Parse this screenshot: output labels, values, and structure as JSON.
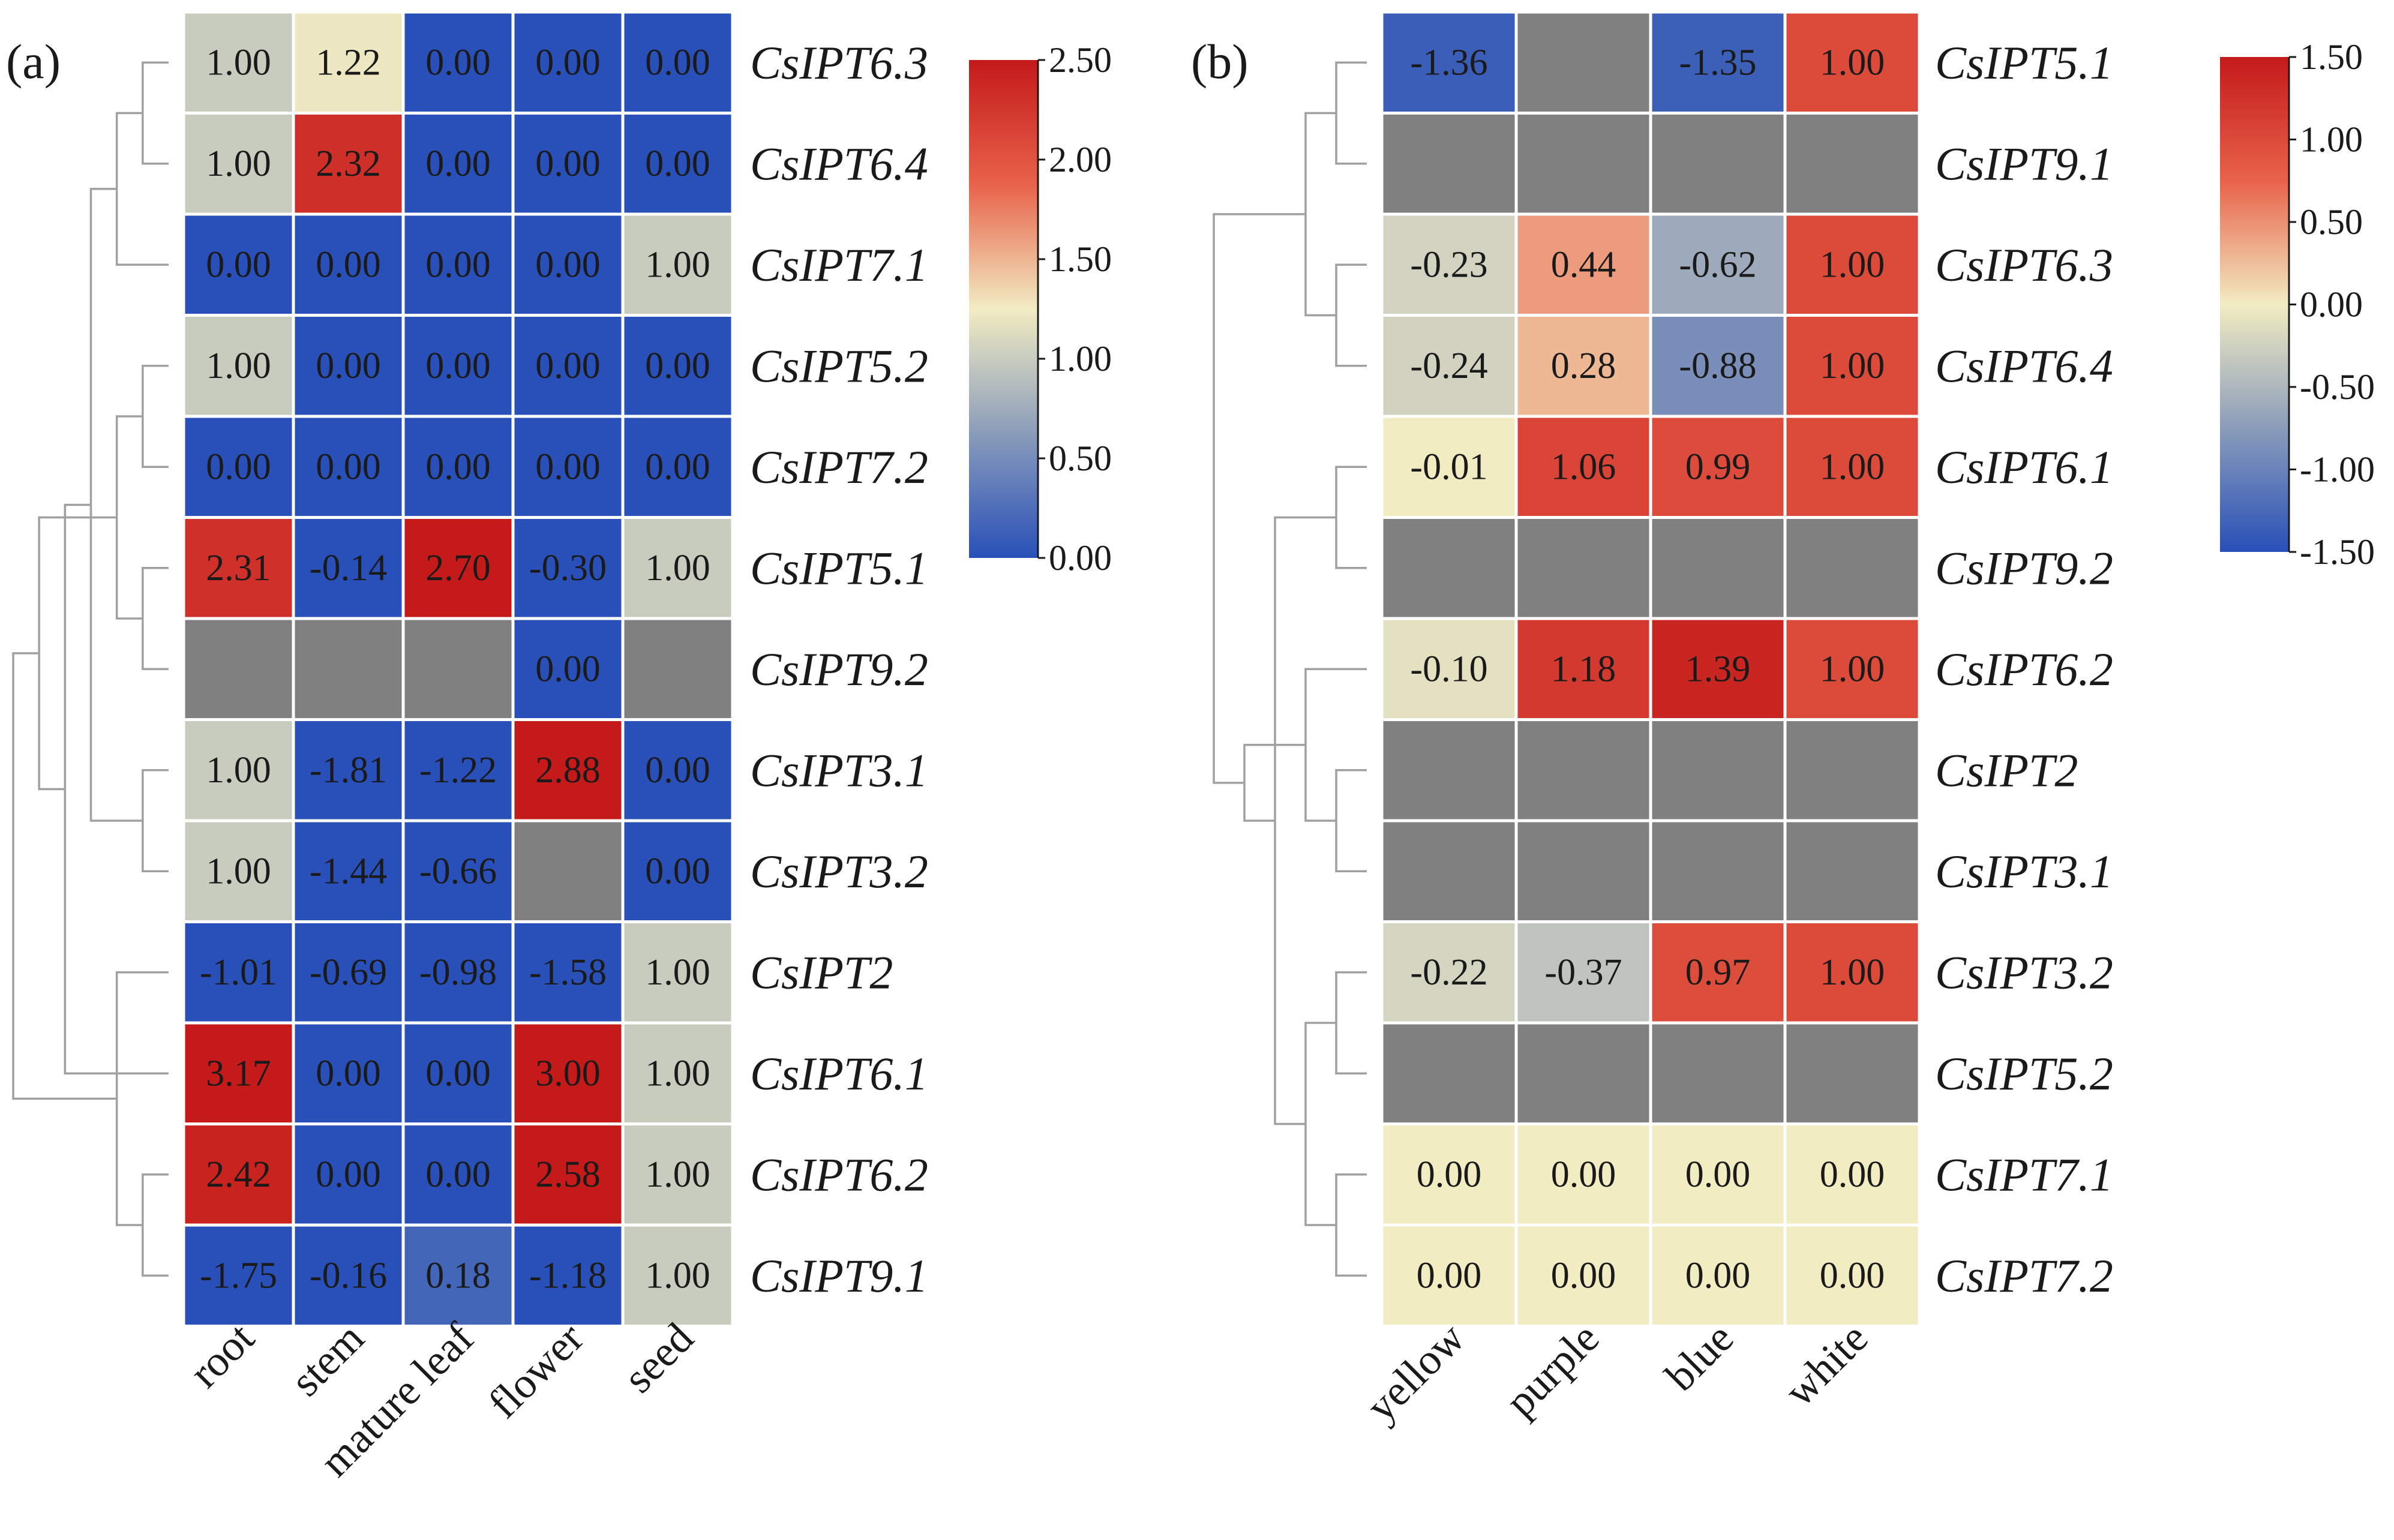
{
  "chart_data": [
    {
      "type": "heatmap",
      "panel_label": "(a)",
      "columns": [
        "root",
        "stem",
        "mature leaf",
        "flower",
        "seed"
      ],
      "rows": [
        "CsIPT6.3",
        "CsIPT6.4",
        "CsIPT7.1",
        "CsIPT5.2",
        "CsIPT7.2",
        "CsIPT5.1",
        "CsIPT9.2",
        "CsIPT3.1",
        "CsIPT3.2",
        "CsIPT2",
        "CsIPT6.1",
        "CsIPT6.2",
        "CsIPT9.1"
      ],
      "values": [
        [
          1.0,
          1.22,
          0.0,
          0.0,
          0.0
        ],
        [
          1.0,
          2.32,
          0.0,
          0.0,
          0.0
        ],
        [
          0.0,
          0.0,
          0.0,
          0.0,
          1.0
        ],
        [
          1.0,
          0.0,
          0.0,
          0.0,
          0.0
        ],
        [
          0.0,
          0.0,
          0.0,
          0.0,
          0.0
        ],
        [
          2.31,
          -0.14,
          2.7,
          -0.3,
          1.0
        ],
        [
          null,
          null,
          null,
          0.0,
          null
        ],
        [
          1.0,
          -1.81,
          -1.22,
          2.88,
          0.0
        ],
        [
          1.0,
          -1.44,
          -0.66,
          null,
          0.0
        ],
        [
          -1.01,
          -0.69,
          -0.98,
          -1.58,
          1.0
        ],
        [
          3.17,
          0.0,
          0.0,
          3.0,
          1.0
        ],
        [
          2.42,
          0.0,
          0.0,
          2.58,
          1.0
        ],
        [
          -1.75,
          -0.16,
          0.18,
          -1.18,
          1.0
        ]
      ],
      "colorbar": {
        "min": 0.0,
        "max": 2.5,
        "ticks": [
          "2.50",
          "2.00",
          "1.50",
          "1.00",
          "0.50",
          "0.00"
        ]
      },
      "missing_color": "#808080",
      "dendrogram": [
        [
          0,
          1
        ],
        [
          3,
          4
        ],
        [
          2,
          13
        ],
        [
          5,
          6
        ],
        [
          7,
          8
        ],
        [
          14,
          16
        ],
        [
          15,
          17
        ],
        [
          11,
          12
        ],
        [
          10,
          19
        ],
        [
          9,
          20
        ],
        [
          18,
          21
        ],
        [
          22,
          23
        ]
      ]
    },
    {
      "type": "heatmap",
      "panel_label": "(b)",
      "columns": [
        "yellow",
        "purple",
        "blue",
        "white"
      ],
      "rows": [
        "CsIPT5.1",
        "CsIPT9.1",
        "CsIPT6.3",
        "CsIPT6.4",
        "CsIPT6.1",
        "CsIPT9.2",
        "CsIPT6.2",
        "CsIPT2",
        "CsIPT3.1",
        "CsIPT3.2",
        "CsIPT5.2",
        "CsIPT7.1",
        "CsIPT7.2"
      ],
      "values": [
        [
          -1.36,
          null,
          -1.35,
          1.0
        ],
        [
          null,
          null,
          null,
          null
        ],
        [
          -0.23,
          0.44,
          -0.62,
          1.0
        ],
        [
          -0.24,
          0.28,
          -0.88,
          1.0
        ],
        [
          -0.01,
          1.06,
          0.99,
          1.0
        ],
        [
          null,
          null,
          null,
          null
        ],
        [
          -0.1,
          1.18,
          1.39,
          1.0
        ],
        [
          null,
          null,
          null,
          null
        ],
        [
          null,
          null,
          null,
          null
        ],
        [
          -0.22,
          -0.37,
          0.97,
          1.0
        ],
        [
          null,
          null,
          null,
          null
        ],
        [
          0.0,
          0.0,
          0.0,
          0.0
        ],
        [
          0.0,
          0.0,
          0.0,
          0.0
        ]
      ],
      "colorbar": {
        "min": -1.5,
        "max": 1.5,
        "ticks": [
          "1.50",
          "1.00",
          "0.50",
          "0.00",
          "-0.50",
          "-1.00",
          "-1.50"
        ]
      },
      "missing_color": "#808080",
      "dendrogram": [
        [
          0,
          1
        ],
        [
          2,
          3
        ],
        [
          7,
          8
        ],
        [
          11,
          12
        ],
        [
          4,
          5
        ],
        [
          6,
          15
        ],
        [
          9,
          10
        ],
        [
          19,
          16
        ],
        [
          17,
          20
        ],
        [
          18,
          21
        ],
        [
          13,
          14
        ],
        [
          22,
          23
        ]
      ]
    }
  ],
  "colormap": [
    "#2850b8",
    "#8a9cba",
    "#f2ecc2",
    "#e8624a",
    "#c41a1a"
  ]
}
